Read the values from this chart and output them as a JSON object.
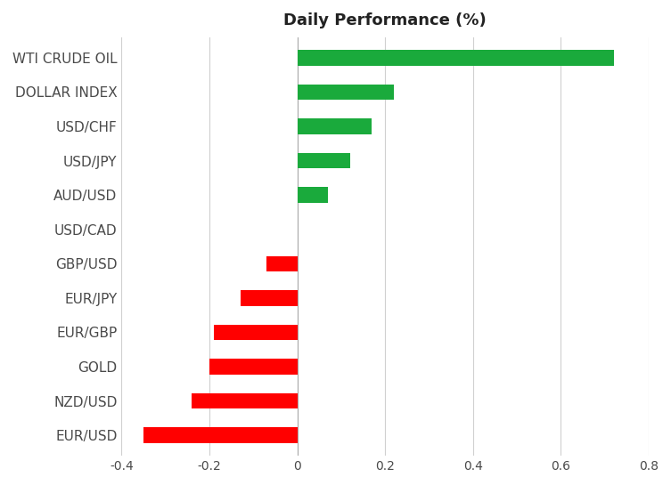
{
  "title": "Daily Performance (%)",
  "categories": [
    "WTI CRUDE OIL",
    "DOLLAR INDEX",
    "USD/CHF",
    "USD/JPY",
    "AUD/USD",
    "USD/CAD",
    "GBP/USD",
    "EUR/JPY",
    "EUR/GBP",
    "GOLD",
    "NZD/USD",
    "EUR/USD"
  ],
  "values": [
    0.72,
    0.22,
    0.17,
    0.12,
    0.07,
    0.0,
    -0.07,
    -0.13,
    -0.19,
    -0.2,
    -0.24,
    -0.35
  ],
  "bar_color_positive": "#1aaa3c",
  "bar_color_negative": "#ff0000",
  "xlim": [
    -0.4,
    0.8
  ],
  "xticks": [
    -0.4,
    -0.2,
    0.0,
    0.2,
    0.4,
    0.6,
    0.8
  ],
  "background_color": "#ffffff",
  "grid_color": "#d0d0d0",
  "title_fontsize": 13,
  "label_fontsize": 11,
  "tick_fontsize": 10,
  "bar_height": 0.45,
  "label_color": "#4a4a4a",
  "tick_color": "#4a4a4a"
}
